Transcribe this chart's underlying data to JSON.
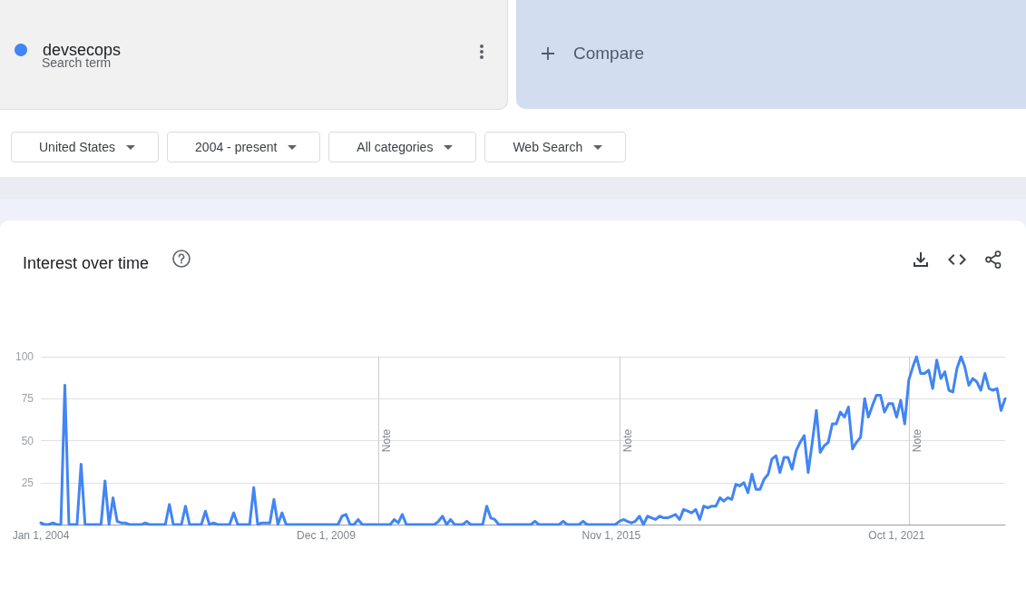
{
  "chart_data": {
    "type": "line",
    "title": "Interest over time",
    "annotations": [
      "Search term",
      "Compare",
      "United States",
      "2004 - present",
      "All categories",
      "Web Search"
    ],
    "x": [
      "2004-01",
      "2004-02",
      "2004-03",
      "2004-04",
      "2004-05",
      "2004-06",
      "2004-07",
      "2004-08",
      "2004-09",
      "2004-10",
      "2004-11",
      "2004-12",
      "2005-01",
      "2005-02",
      "2005-03",
      "2005-04",
      "2005-05",
      "2005-06",
      "2005-07",
      "2005-08",
      "2005-09",
      "2005-10",
      "2005-11",
      "2005-12",
      "2006-01",
      "2006-02",
      "2006-03",
      "2006-04",
      "2006-05",
      "2006-06",
      "2006-07",
      "2006-08",
      "2006-09",
      "2006-10",
      "2006-11",
      "2006-12",
      "2007-01",
      "2007-02",
      "2007-03",
      "2007-04",
      "2007-05",
      "2007-06",
      "2007-07",
      "2007-08",
      "2007-09",
      "2007-10",
      "2007-11",
      "2007-12",
      "2008-01",
      "2008-02",
      "2008-03",
      "2008-04",
      "2008-05",
      "2008-06",
      "2008-07",
      "2008-08",
      "2008-09",
      "2008-10",
      "2008-11",
      "2008-12",
      "2009-01",
      "2009-02",
      "2009-03",
      "2009-04",
      "2009-05",
      "2009-06",
      "2009-07",
      "2009-08",
      "2009-09",
      "2009-10",
      "2009-11",
      "2009-12",
      "2010-01",
      "2010-02",
      "2010-03",
      "2010-04",
      "2010-05",
      "2010-06",
      "2010-07",
      "2010-08",
      "2010-09",
      "2010-10",
      "2010-11",
      "2010-12",
      "2011-01",
      "2011-02",
      "2011-03",
      "2011-04",
      "2011-05",
      "2011-06",
      "2011-07",
      "2011-08",
      "2011-09",
      "2011-10",
      "2011-11",
      "2011-12",
      "2012-01",
      "2012-02",
      "2012-03",
      "2012-04",
      "2012-05",
      "2012-06",
      "2012-07",
      "2012-08",
      "2012-09",
      "2012-10",
      "2012-11",
      "2012-12",
      "2013-01",
      "2013-02",
      "2013-03",
      "2013-04",
      "2013-05",
      "2013-06",
      "2013-07",
      "2013-08",
      "2013-09",
      "2013-10",
      "2013-11",
      "2013-12",
      "2014-01",
      "2014-02",
      "2014-03",
      "2014-04",
      "2014-05",
      "2014-06",
      "2014-07",
      "2014-08",
      "2014-09",
      "2014-10",
      "2014-11",
      "2014-12",
      "2015-01",
      "2015-02",
      "2015-03",
      "2015-04",
      "2015-05",
      "2015-06",
      "2015-07",
      "2015-08",
      "2015-09",
      "2015-10",
      "2015-11",
      "2015-12",
      "2016-01",
      "2016-02",
      "2016-03",
      "2016-04",
      "2016-05",
      "2016-06",
      "2016-07",
      "2016-08",
      "2016-09",
      "2016-10",
      "2016-11",
      "2016-12",
      "2017-01",
      "2017-02",
      "2017-03",
      "2017-04",
      "2017-05",
      "2017-06",
      "2017-07",
      "2017-08",
      "2017-09",
      "2017-10",
      "2017-11",
      "2017-12",
      "2018-01",
      "2018-02",
      "2018-03",
      "2018-04",
      "2018-05",
      "2018-06",
      "2018-07",
      "2018-08",
      "2018-09",
      "2018-10",
      "2018-11",
      "2018-12",
      "2019-01",
      "2019-02",
      "2019-03",
      "2019-04",
      "2019-05",
      "2019-06",
      "2019-07",
      "2019-08",
      "2019-09",
      "2019-10",
      "2019-11",
      "2019-12",
      "2020-01",
      "2020-02",
      "2020-03",
      "2020-04",
      "2020-05",
      "2020-06",
      "2020-07",
      "2020-08",
      "2020-09",
      "2020-10",
      "2020-11",
      "2020-12",
      "2021-01",
      "2021-02",
      "2021-03",
      "2021-04",
      "2021-05",
      "2021-06",
      "2021-07",
      "2021-08",
      "2021-09",
      "2021-10",
      "2021-11",
      "2021-12",
      "2022-01",
      "2022-02",
      "2022-03",
      "2022-04",
      "2022-05",
      "2022-06",
      "2022-07",
      "2022-08",
      "2022-09",
      "2022-10",
      "2022-11",
      "2022-12",
      "2023-01",
      "2023-02",
      "2023-03",
      "2023-04",
      "2023-05",
      "2023-06",
      "2023-07",
      "2023-08",
      "2023-09",
      "2023-10",
      "2023-11",
      "2023-12",
      "2024-01"
    ],
    "series": [
      {
        "name": "devsecops",
        "color": "#4285f4",
        "values": [
          1,
          0,
          0,
          1,
          0,
          0,
          83,
          0,
          0,
          0,
          36,
          0,
          0,
          0,
          0,
          0,
          26,
          0,
          16,
          2,
          1,
          1,
          0,
          0,
          0,
          0,
          1,
          0,
          0,
          0,
          0,
          0,
          12,
          0,
          0,
          0,
          11,
          0,
          0,
          0,
          0,
          8,
          0,
          1,
          0,
          0,
          0,
          0,
          7,
          0,
          0,
          0,
          0,
          22,
          0,
          1,
          1,
          1,
          15,
          0,
          7,
          0,
          0,
          0,
          0,
          0,
          0,
          0,
          0,
          0,
          0,
          0,
          0,
          0,
          0,
          5,
          6,
          0,
          0,
          3,
          0,
          0,
          0,
          0,
          0,
          0,
          0,
          0,
          3,
          1,
          6,
          0,
          0,
          0,
          0,
          0,
          0,
          0,
          0,
          2,
          5,
          0,
          3,
          0,
          0,
          0,
          2,
          0,
          0,
          0,
          0,
          11,
          4,
          3,
          0,
          0,
          0,
          0,
          0,
          0,
          0,
          0,
          0,
          2,
          0,
          0,
          0,
          0,
          0,
          0,
          2,
          0,
          0,
          0,
          0,
          2,
          0,
          0,
          0,
          0,
          0,
          0,
          0,
          0,
          2,
          3,
          2,
          1,
          2,
          5,
          0,
          5,
          4,
          3,
          5,
          4,
          4,
          5,
          6,
          3,
          9,
          8,
          7,
          9,
          3,
          11,
          10,
          11,
          11,
          16,
          14,
          16,
          15,
          24,
          23,
          25,
          19,
          30,
          21,
          21,
          27,
          30,
          39,
          41,
          31,
          40,
          40,
          33,
          44,
          49,
          53,
          31,
          49,
          68,
          43,
          47,
          49,
          60,
          60,
          67,
          64,
          70,
          45,
          49,
          52,
          75,
          64,
          71,
          77,
          77,
          67,
          72,
          72,
          64,
          74,
          60,
          86,
          94,
          100,
          90,
          90,
          92,
          81,
          98,
          87,
          91,
          80,
          79,
          93,
          100,
          94,
          83,
          87,
          85,
          80,
          90,
          81,
          80,
          81,
          68,
          75
        ]
      }
    ],
    "xlim": [
      "2004-01",
      "2024-01"
    ],
    "xticks": [
      {
        "value": "2004-01-01",
        "label": "Jan 1, 2004"
      },
      {
        "value": "2009-12-01",
        "label": "Dec 1, 2009"
      },
      {
        "value": "2015-11-01",
        "label": "Nov 1, 2015"
      },
      {
        "value": "2021-10-01",
        "label": "Oct 1, 2021"
      }
    ],
    "ylim": [
      0,
      100
    ],
    "yticks": [
      25,
      50,
      75,
      100
    ],
    "ref_lines": [
      {
        "axis": "x",
        "value": "2011-01-01",
        "label": "Note",
        "color": "#cccccc"
      },
      {
        "axis": "x",
        "value": "2016-01-01",
        "label": "Note",
        "color": "#cccccc"
      },
      {
        "axis": "x",
        "value": "2022-01-01",
        "label": "Note",
        "color": "#cccccc"
      }
    ],
    "grid": "y",
    "legend": "top left",
    "marker": "none",
    "line_style": "solid"
  }
}
